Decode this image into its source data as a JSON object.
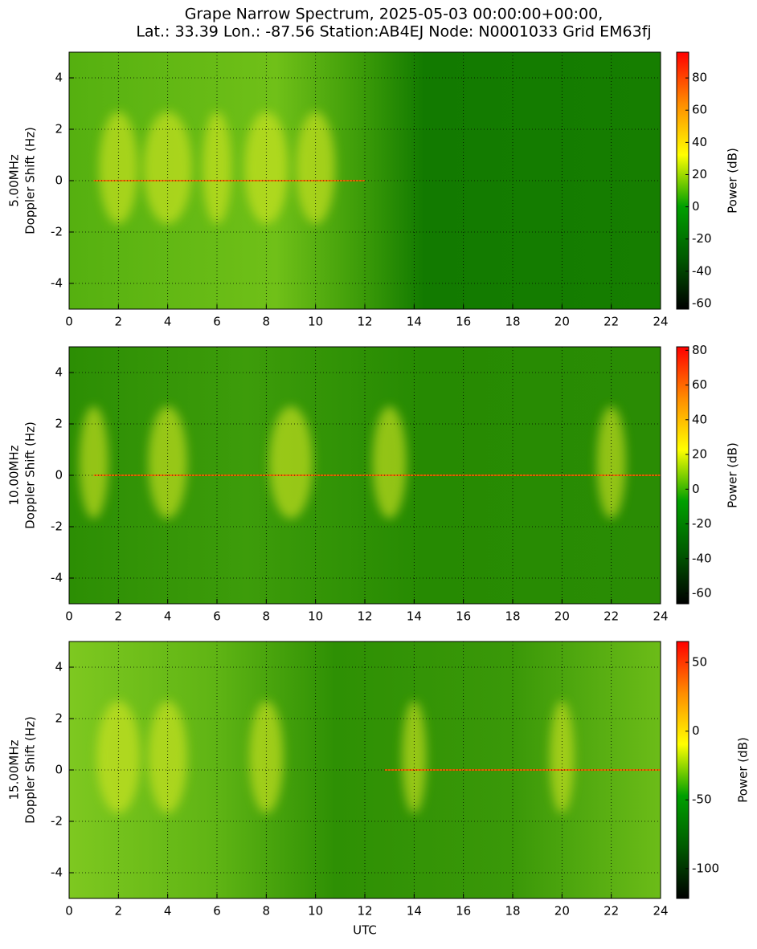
{
  "title": [
    "Grape Narrow Spectrum, 2025-05-03 00:00:00+00:00,",
    "Lat.: 33.39 Lon.: -87.56 Station:AB4EJ Node: N0001033 Grid EM63fj"
  ],
  "chart_data": [
    {
      "type": "spectrogram",
      "band": "5.00MHz",
      "ylabel": "Doppler Shift (Hz)",
      "xlim": [
        0,
        24
      ],
      "xticks": [
        0,
        2,
        4,
        6,
        8,
        10,
        12,
        14,
        16,
        18,
        20,
        22,
        24
      ],
      "ylim": [
        -5,
        5
      ],
      "yticks": [
        -4,
        -2,
        0,
        2,
        4
      ],
      "grid": true,
      "colorbar_label": "Power (dB)",
      "clim": [
        -63.5,
        96
      ],
      "cticks": [
        -60,
        -40,
        -20,
        0,
        20,
        40,
        60,
        80
      ],
      "colormap": [
        "#000000",
        "#005a00",
        "#00a000",
        "#ffff00",
        "#ff8c00",
        "#ff0000"
      ]
    },
    {
      "type": "spectrogram",
      "band": "10.00MHz",
      "ylabel": "Doppler Shift (Hz)",
      "xlim": [
        0,
        24
      ],
      "xticks": [
        0,
        2,
        4,
        6,
        8,
        10,
        12,
        14,
        16,
        18,
        20,
        22,
        24
      ],
      "ylim": [
        -5,
        5
      ],
      "yticks": [
        -4,
        -2,
        0,
        2,
        4
      ],
      "grid": true,
      "colorbar_label": "Power (dB)",
      "clim": [
        -66,
        82
      ],
      "cticks": [
        -60,
        -40,
        -20,
        0,
        20,
        40,
        60,
        80
      ],
      "colormap": [
        "#000000",
        "#005a00",
        "#00a000",
        "#ffff00",
        "#ff8c00",
        "#ff0000"
      ]
    },
    {
      "type": "spectrogram",
      "band": "15.00MHz",
      "ylabel": "Doppler Shift (Hz)",
      "xlabel": "UTC",
      "xlim": [
        0,
        24
      ],
      "xticks": [
        0,
        2,
        4,
        6,
        8,
        10,
        12,
        14,
        16,
        18,
        20,
        22,
        24
      ],
      "ylim": [
        -5,
        5
      ],
      "yticks": [
        -4,
        -2,
        0,
        2,
        4
      ],
      "grid": true,
      "colorbar_label": "Power (dB)",
      "clim": [
        -121.7,
        65.2
      ],
      "cticks": [
        -100,
        -50,
        0,
        50
      ],
      "colormap": [
        "#000000",
        "#005a00",
        "#00a000",
        "#ffff00",
        "#ff8c00",
        "#ff0000"
      ]
    }
  ]
}
